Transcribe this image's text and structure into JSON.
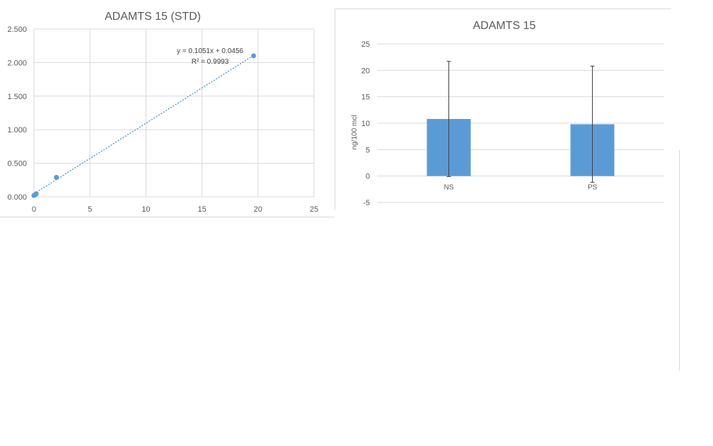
{
  "charts": [
    {
      "title": "ADAMTS 15 (STD)",
      "trendline_equation": "y = 0.1051x + 0.0456",
      "trendline_r2": "R² = 0.9993"
    },
    {
      "title": "ADAMTS 15",
      "ylabel": "ng/100 mcl"
    }
  ],
  "colors": {
    "series": "#5b9bd5",
    "grid": "#d9d9d9",
    "text": "#595959",
    "title": "#595959",
    "error_bar": "#404040"
  },
  "chart_data": [
    {
      "type": "scatter",
      "title": "ADAMTS 15 (STD)",
      "xlabel": "",
      "ylabel": "",
      "xlim": [
        0,
        25
      ],
      "ylim": [
        0,
        2.5
      ],
      "x_ticks": [
        0,
        5,
        10,
        15,
        20,
        25
      ],
      "y_ticks": [
        "0.000",
        "0.500",
        "1.000",
        "1.500",
        "2.000",
        "2.500"
      ],
      "grid": true,
      "series": [
        {
          "x": [
            0,
            0.1,
            0.2,
            2,
            19.6
          ],
          "y": [
            0.02,
            0.03,
            0.045,
            0.29,
            2.1
          ]
        }
      ],
      "trendline": {
        "type": "linear",
        "slope": 0.1051,
        "intercept": 0.0456,
        "x_range": [
          0,
          19.6
        ],
        "equation": "y = 0.1051x + 0.0456",
        "r2": "R² = 0.9993"
      }
    },
    {
      "type": "bar",
      "title": "ADAMTS 15",
      "xlabel": "",
      "ylabel": "ng/100 mcl",
      "categories": [
        "NS",
        "PS"
      ],
      "values": [
        10.8,
        9.8
      ],
      "error_plus": [
        10.9,
        11.0
      ],
      "error_minus": [
        10.9,
        11.0
      ],
      "ylim": [
        -5,
        25
      ],
      "y_ticks": [
        -5,
        0,
        5,
        10,
        15,
        20,
        25
      ],
      "grid": true
    }
  ]
}
